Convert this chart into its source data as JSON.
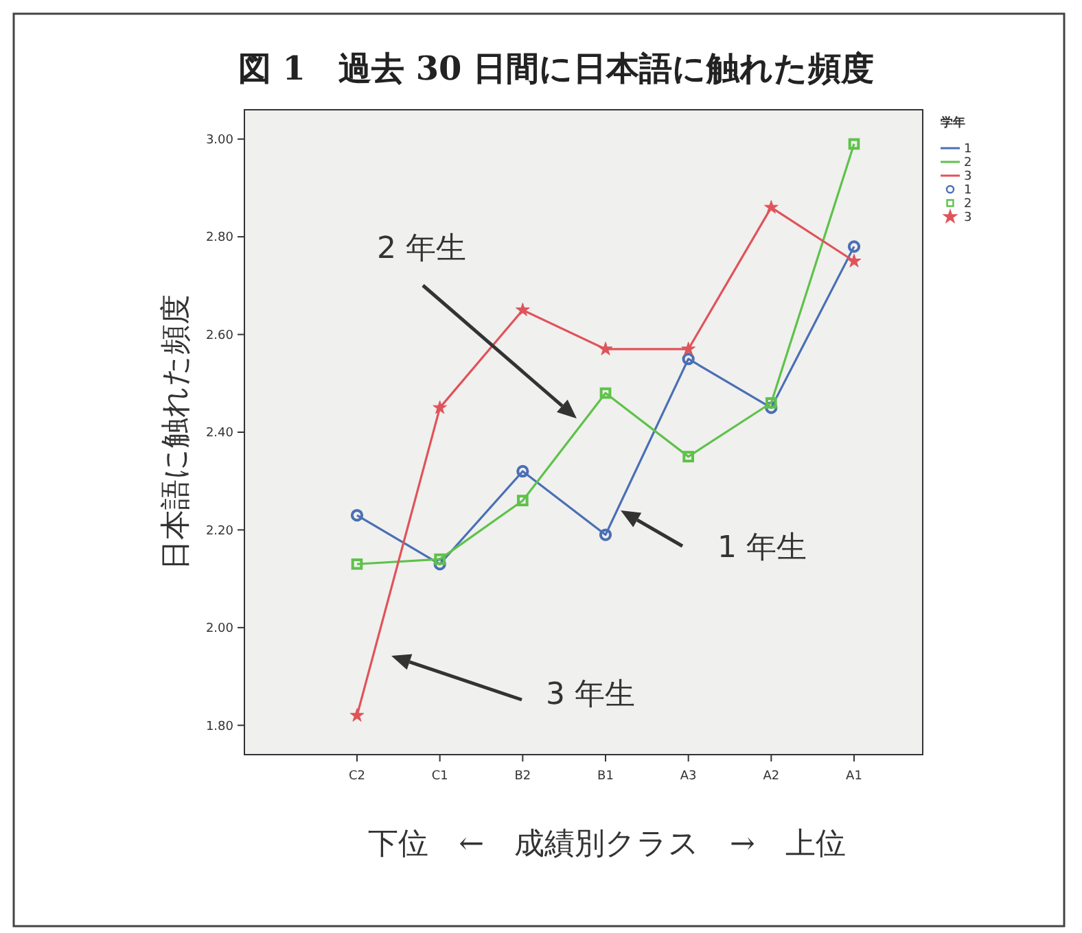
{
  "chart_data": {
    "type": "line",
    "title": "図 1　過去 30 日間に日本語に触れた頻度",
    "xlabel": "下位　←　成績別クラス　→　上位",
    "ylabel": "日本語に触れた頻度",
    "legend_title": "学年",
    "categories": [
      "C2",
      "C1",
      "B2",
      "B1",
      "A3",
      "A2",
      "A1"
    ],
    "series": [
      {
        "name": "1",
        "color": "#4a6fb5",
        "marker": "circle",
        "values": [
          2.23,
          2.13,
          2.32,
          2.19,
          2.55,
          2.45,
          2.78
        ]
      },
      {
        "name": "2",
        "color": "#5ec24a",
        "marker": "square",
        "values": [
          2.13,
          2.14,
          2.26,
          2.48,
          2.35,
          2.46,
          2.99
        ]
      },
      {
        "name": "3",
        "color": "#e0535a",
        "marker": "star",
        "values": [
          1.82,
          2.45,
          2.65,
          2.57,
          2.57,
          2.86,
          2.75
        ]
      }
    ],
    "ylim": [
      1.74,
      3.06
    ],
    "yticks": [
      {
        "value": 1.8,
        "label": "1.80"
      },
      {
        "value": 2.0,
        "label": "2.00"
      },
      {
        "value": 2.2,
        "label": "2.20"
      },
      {
        "value": 2.4,
        "label": "2.40"
      },
      {
        "value": 2.6,
        "label": "2.60"
      },
      {
        "value": 2.8,
        "label": "2.80"
      },
      {
        "value": 3.0,
        "label": "3.00"
      }
    ],
    "grid": false,
    "legend": "right",
    "line_style": "solid",
    "annotations": [
      "2 年生",
      "1 年生",
      "3 年生"
    ]
  }
}
